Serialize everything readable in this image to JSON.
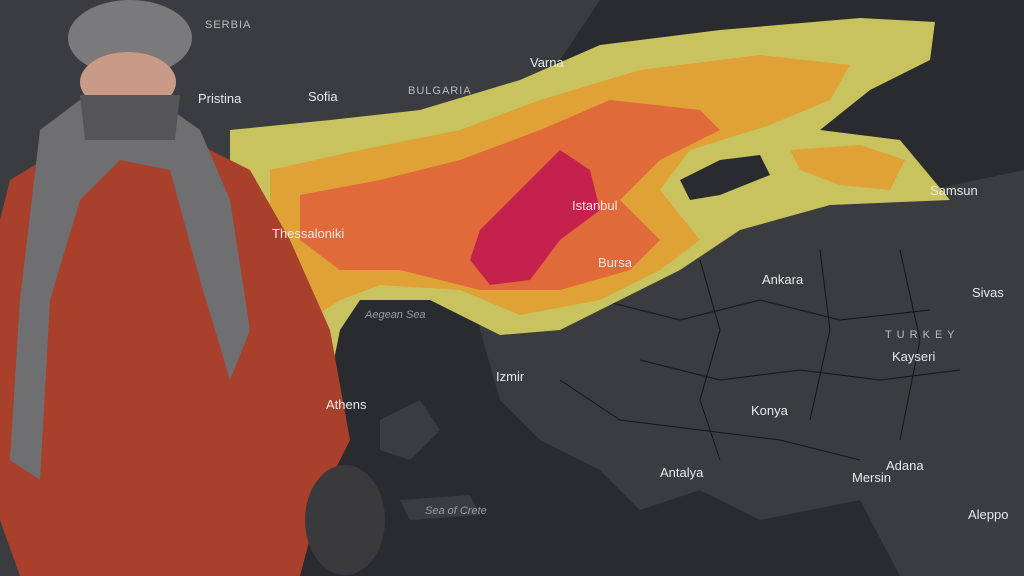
{
  "map": {
    "labels": {
      "serbia": "SERBIA",
      "bulgaria": "BULGARIA",
      "sofia": "Sofia",
      "varna": "Varna",
      "pristina": "Pristina",
      "thessaloniki": "Thessaloniki",
      "istanbul": "Istanbul",
      "bursa": "Bursa",
      "samsun": "Samsun",
      "ankara": "Ankara",
      "sivas": "Sivas",
      "turkey": "T U R K E Y",
      "kayseri": "Kayseri",
      "izmir": "Izmir",
      "aegean_sea": "Aegean Sea",
      "athens": "Athens",
      "konya": "Konya",
      "antalya": "Antalya",
      "adana": "Adana",
      "mersin": "Mersin",
      "aleppo": "Aleppo",
      "sea_of_crete": "Sea of Crete"
    }
  }
}
